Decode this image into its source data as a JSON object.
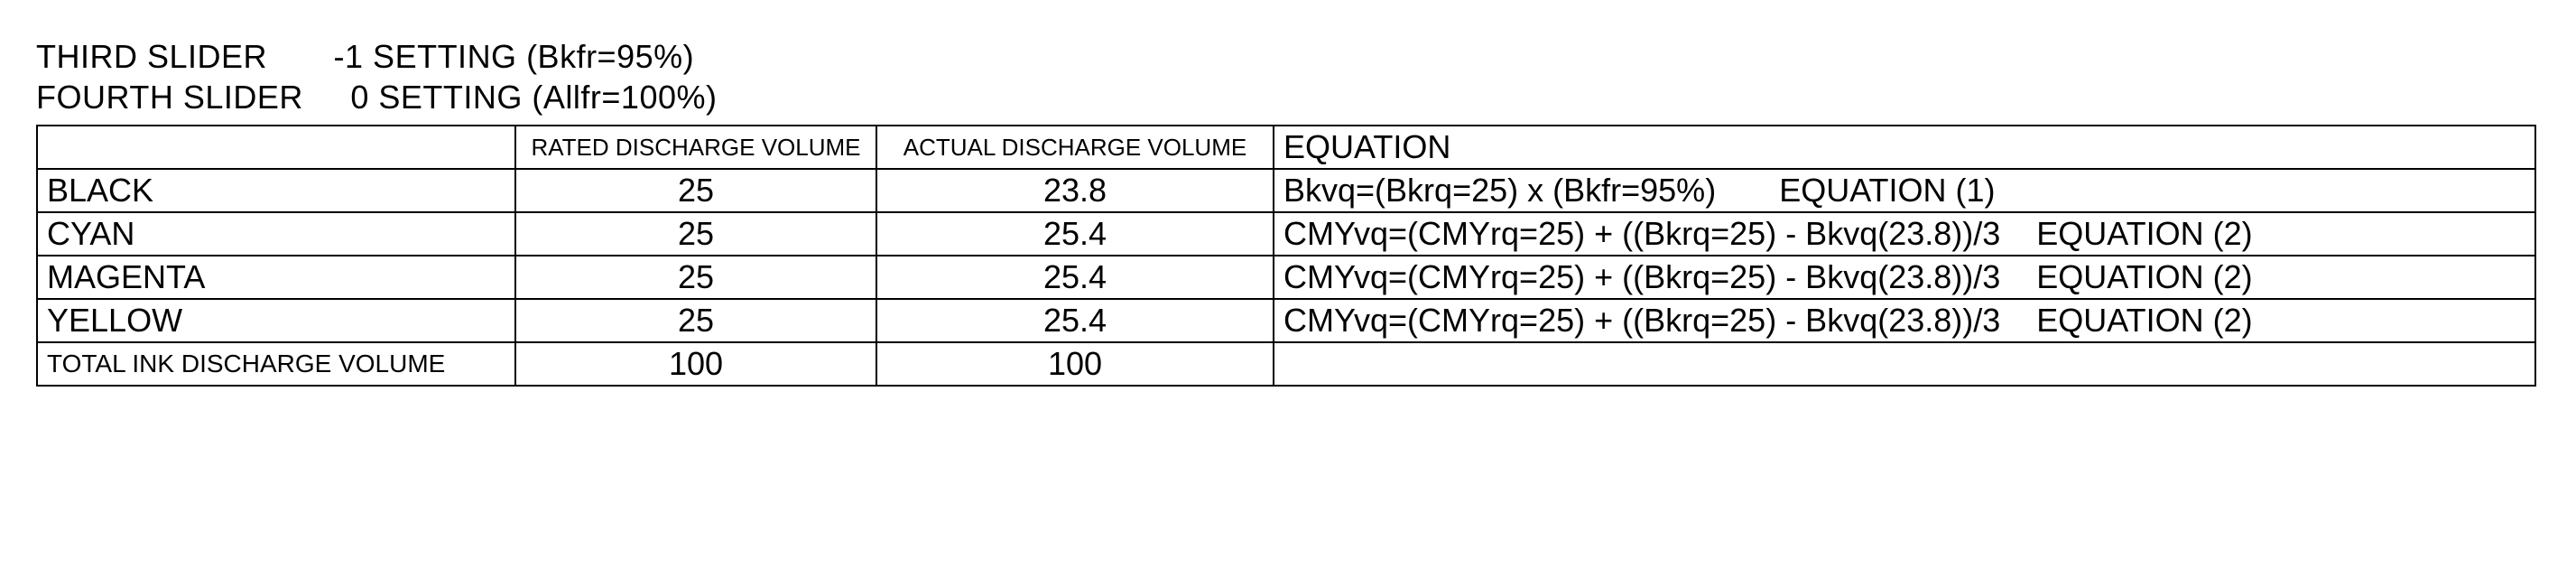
{
  "settings": {
    "line1": "THIRD SLIDER       -1 SETTING (Bkfr=95%)",
    "line2": "FOURTH SLIDER     0 SETTING (Allfr=100%)"
  },
  "headers": {
    "rated": "RATED DISCHARGE VOLUME",
    "actual": "ACTUAL DISCHARGE VOLUME",
    "equation": "EQUATION"
  },
  "rows": [
    {
      "label": "BLACK",
      "rated": "25",
      "actual": "23.8",
      "eq": "Bkvq=(Bkrq=25) x (Bkfr=95%)",
      "eq_label": "EQUATION (1)"
    },
    {
      "label": "CYAN",
      "rated": "25",
      "actual": "25.4",
      "eq": "CMYvq=(CMYrq=25) + ((Bkrq=25) - Bkvq(23.8))/3",
      "eq_label": "EQUATION (2)"
    },
    {
      "label": "MAGENTA",
      "rated": "25",
      "actual": "25.4",
      "eq": "CMYvq=(CMYrq=25) + ((Bkrq=25) - Bkvq(23.8))/3",
      "eq_label": "EQUATION (2)"
    },
    {
      "label": "YELLOW",
      "rated": "25",
      "actual": "25.4",
      "eq": "CMYvq=(CMYrq=25) + ((Bkrq=25) - Bkvq(23.8))/3",
      "eq_label": "EQUATION (2)"
    }
  ],
  "total": {
    "label": "TOTAL INK DISCHARGE VOLUME",
    "rated": "100",
    "actual": "100",
    "eq": ""
  }
}
